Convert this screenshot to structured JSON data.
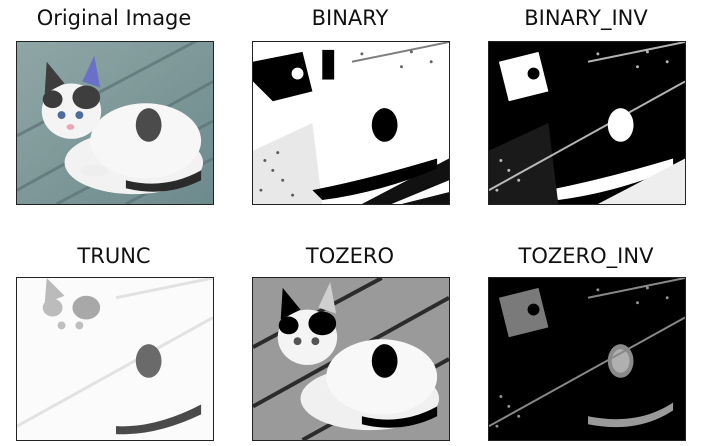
{
  "panels": [
    {
      "title": "Original Image",
      "icon": "cat-photo-color-icon"
    },
    {
      "title": "BINARY",
      "icon": "cat-binary-threshold-icon"
    },
    {
      "title": "BINARY_INV",
      "icon": "cat-binary-inverted-threshold-icon"
    },
    {
      "title": "TRUNC",
      "icon": "cat-trunc-threshold-icon"
    },
    {
      "title": "TOZERO",
      "icon": "cat-tozero-threshold-icon"
    },
    {
      "title": "TOZERO_INV",
      "icon": "cat-tozero-inverted-threshold-icon"
    }
  ]
}
